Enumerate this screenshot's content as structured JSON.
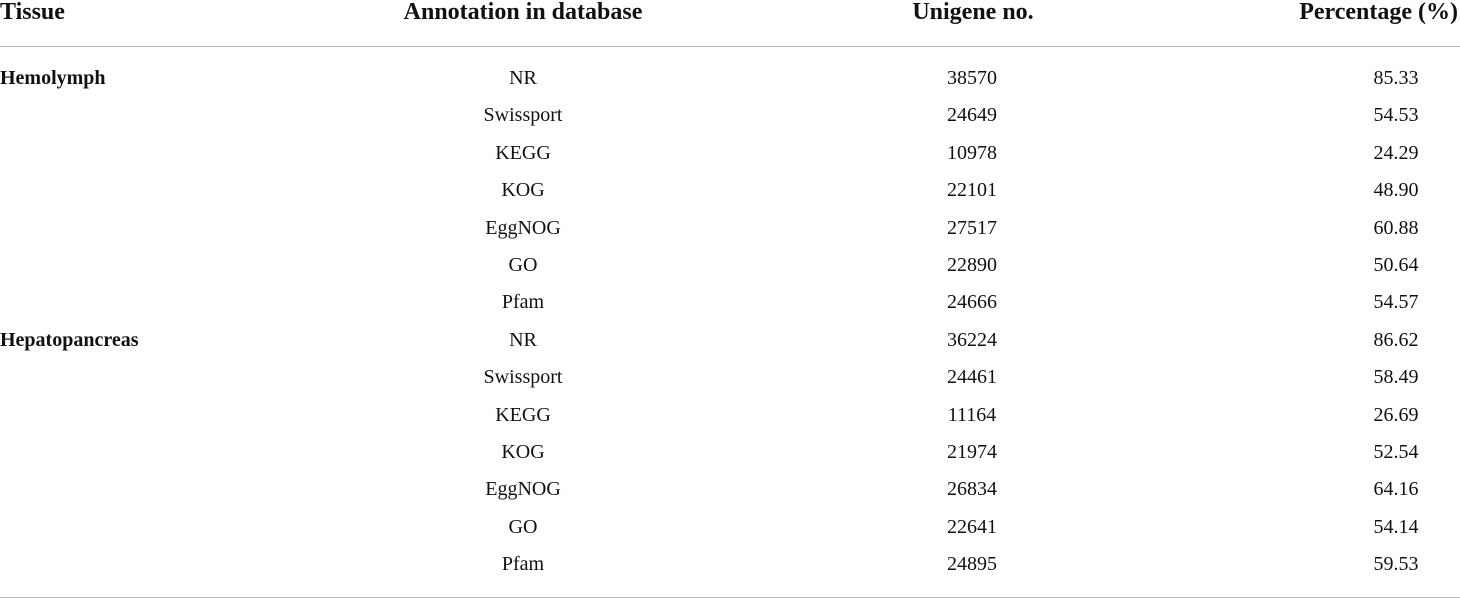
{
  "table": {
    "header": [
      "Tissue",
      "Annotation in database",
      "Unigene no.",
      "Percentage (%)"
    ],
    "groups": [
      {
        "tissue": "Hemolymph",
        "rows": [
          [
            "NR",
            "38570",
            "85.33"
          ],
          [
            "Swissport",
            "24649",
            "54.53"
          ],
          [
            "KEGG",
            "10978",
            "24.29"
          ],
          [
            "KOG",
            "22101",
            "48.90"
          ],
          [
            "EggNOG",
            "27517",
            "60.88"
          ],
          [
            "GO",
            "22890",
            "50.64"
          ],
          [
            "Pfam",
            "24666",
            "54.57"
          ]
        ]
      },
      {
        "tissue": "Hepatopancreas",
        "rows": [
          [
            "NR",
            "36224",
            "86.62"
          ],
          [
            "Swissport",
            "24461",
            "58.49"
          ],
          [
            "KEGG",
            "11164",
            "26.69"
          ],
          [
            "KOG",
            "21974",
            "52.54"
          ],
          [
            "EggNOG",
            "26834",
            "64.16"
          ],
          [
            "GO",
            "22641",
            "54.14"
          ],
          [
            "Pfam",
            "24895",
            "59.53"
          ]
        ]
      }
    ]
  }
}
